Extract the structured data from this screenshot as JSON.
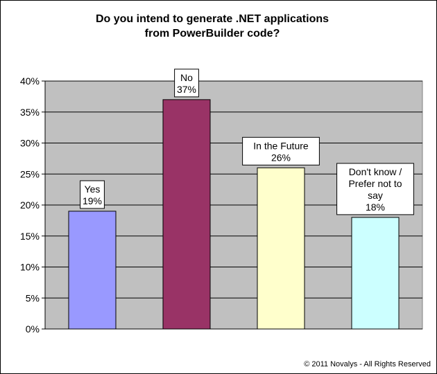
{
  "chart_data": {
    "type": "bar",
    "title": "Do you intend to generate .NET applications\nfrom PowerBuilder code?",
    "categories": [
      "Yes",
      "No",
      "In the Future",
      "Don't know / Prefer not to say"
    ],
    "values": [
      19,
      37,
      26,
      18
    ],
    "ylim": [
      0,
      40
    ],
    "y_ticks": [
      "0%",
      "5%",
      "10%",
      "15%",
      "20%",
      "25%",
      "30%",
      "35%",
      "40%"
    ],
    "xlabel": "",
    "ylabel": "",
    "grid": true,
    "legend": "none",
    "bar_colors": [
      "#9999ff",
      "#993366",
      "#ffffcc",
      "#ccffff"
    ],
    "plot_background": "#c0c0c0",
    "data_labels": [
      [
        "Yes",
        "19%"
      ],
      [
        "No",
        "37%"
      ],
      [
        "In the Future",
        "26%"
      ],
      [
        "Don't know /",
        "Prefer not to",
        "say",
        "18%"
      ]
    ]
  },
  "footer": {
    "copyright": "© 2011 Novalys - All Rights Reserved"
  }
}
